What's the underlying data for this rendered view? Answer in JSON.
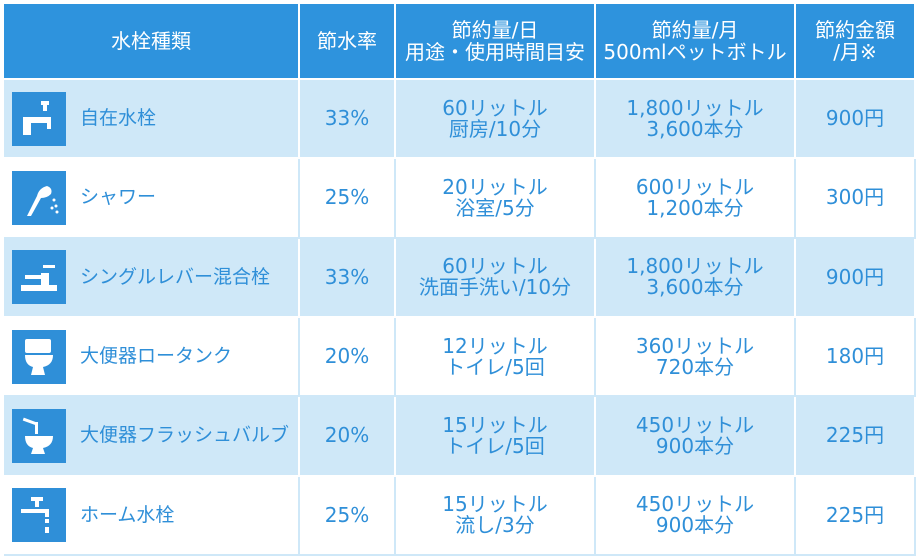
{
  "header": {
    "col_type": "水栓種類",
    "col_rate": "節水率",
    "col_day_1": "節約量/日",
    "col_day_2": "用途・使用時間目安",
    "col_month_1": "節約量/月",
    "col_month_2": "500mlペットボトル",
    "col_money_1": "節約金額",
    "col_money_2": "/月※"
  },
  "rows": [
    {
      "icon": "faucet-icon",
      "name": "自在水栓",
      "rate": "33%",
      "day_1": "60リットル",
      "day_2": "厨房/10分",
      "month_1": "1,800リットル",
      "month_2": "3,600本分",
      "money": "900円"
    },
    {
      "icon": "shower-icon",
      "name": "シャワー",
      "rate": "25%",
      "day_1": "20リットル",
      "day_2": "浴室/5分",
      "month_1": "600リットル",
      "month_2": "1,200本分",
      "money": "300円"
    },
    {
      "icon": "lever-mixer-icon",
      "name": "シングルレバー混合栓",
      "rate": "33%",
      "day_1": "60リットル",
      "day_2": "洗面手洗い/10分",
      "month_1": "1,800リットル",
      "month_2": "3,600本分",
      "money": "900円"
    },
    {
      "icon": "toilet-tank-icon",
      "name": "大便器ロータンク",
      "rate": "20%",
      "day_1": "12リットル",
      "day_2": "トイレ/5回",
      "month_1": "360リットル",
      "month_2": "720本分",
      "money": "180円"
    },
    {
      "icon": "flush-valve-toilet-icon",
      "name": "大便器フラッシュバルブ",
      "rate": "20%",
      "day_1": "15リットル",
      "day_2": "トイレ/5回",
      "month_1": "450リットル",
      "month_2": "900本分",
      "money": "225円"
    },
    {
      "icon": "home-faucet-icon",
      "name": "ホーム水栓",
      "rate": "25%",
      "day_1": "15リットル",
      "day_2": "流し/3分",
      "month_1": "450リットル",
      "month_2": "900本分",
      "money": "225円"
    }
  ],
  "colors": {
    "header_bg": "#2e93dd",
    "odd_row_bg": "#cfe8f8",
    "even_row_bg": "#ffffff",
    "text_blue": "#2f8fd8",
    "icon_bg": "#2f8fd8"
  }
}
